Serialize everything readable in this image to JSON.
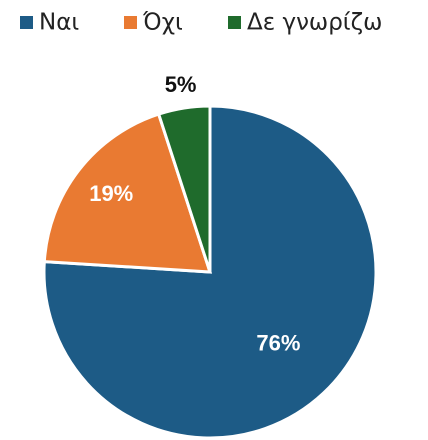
{
  "chart_data": {
    "type": "pie",
    "categories": [
      "Ναι",
      "Όχι",
      "Δε γνωρίζω"
    ],
    "values": [
      76,
      19,
      5
    ],
    "value_labels": [
      "76%",
      "19%",
      "5%"
    ],
    "colors": [
      "#1d5b86",
      "#e97a32",
      "#1f6b2c"
    ],
    "legend": "top"
  }
}
